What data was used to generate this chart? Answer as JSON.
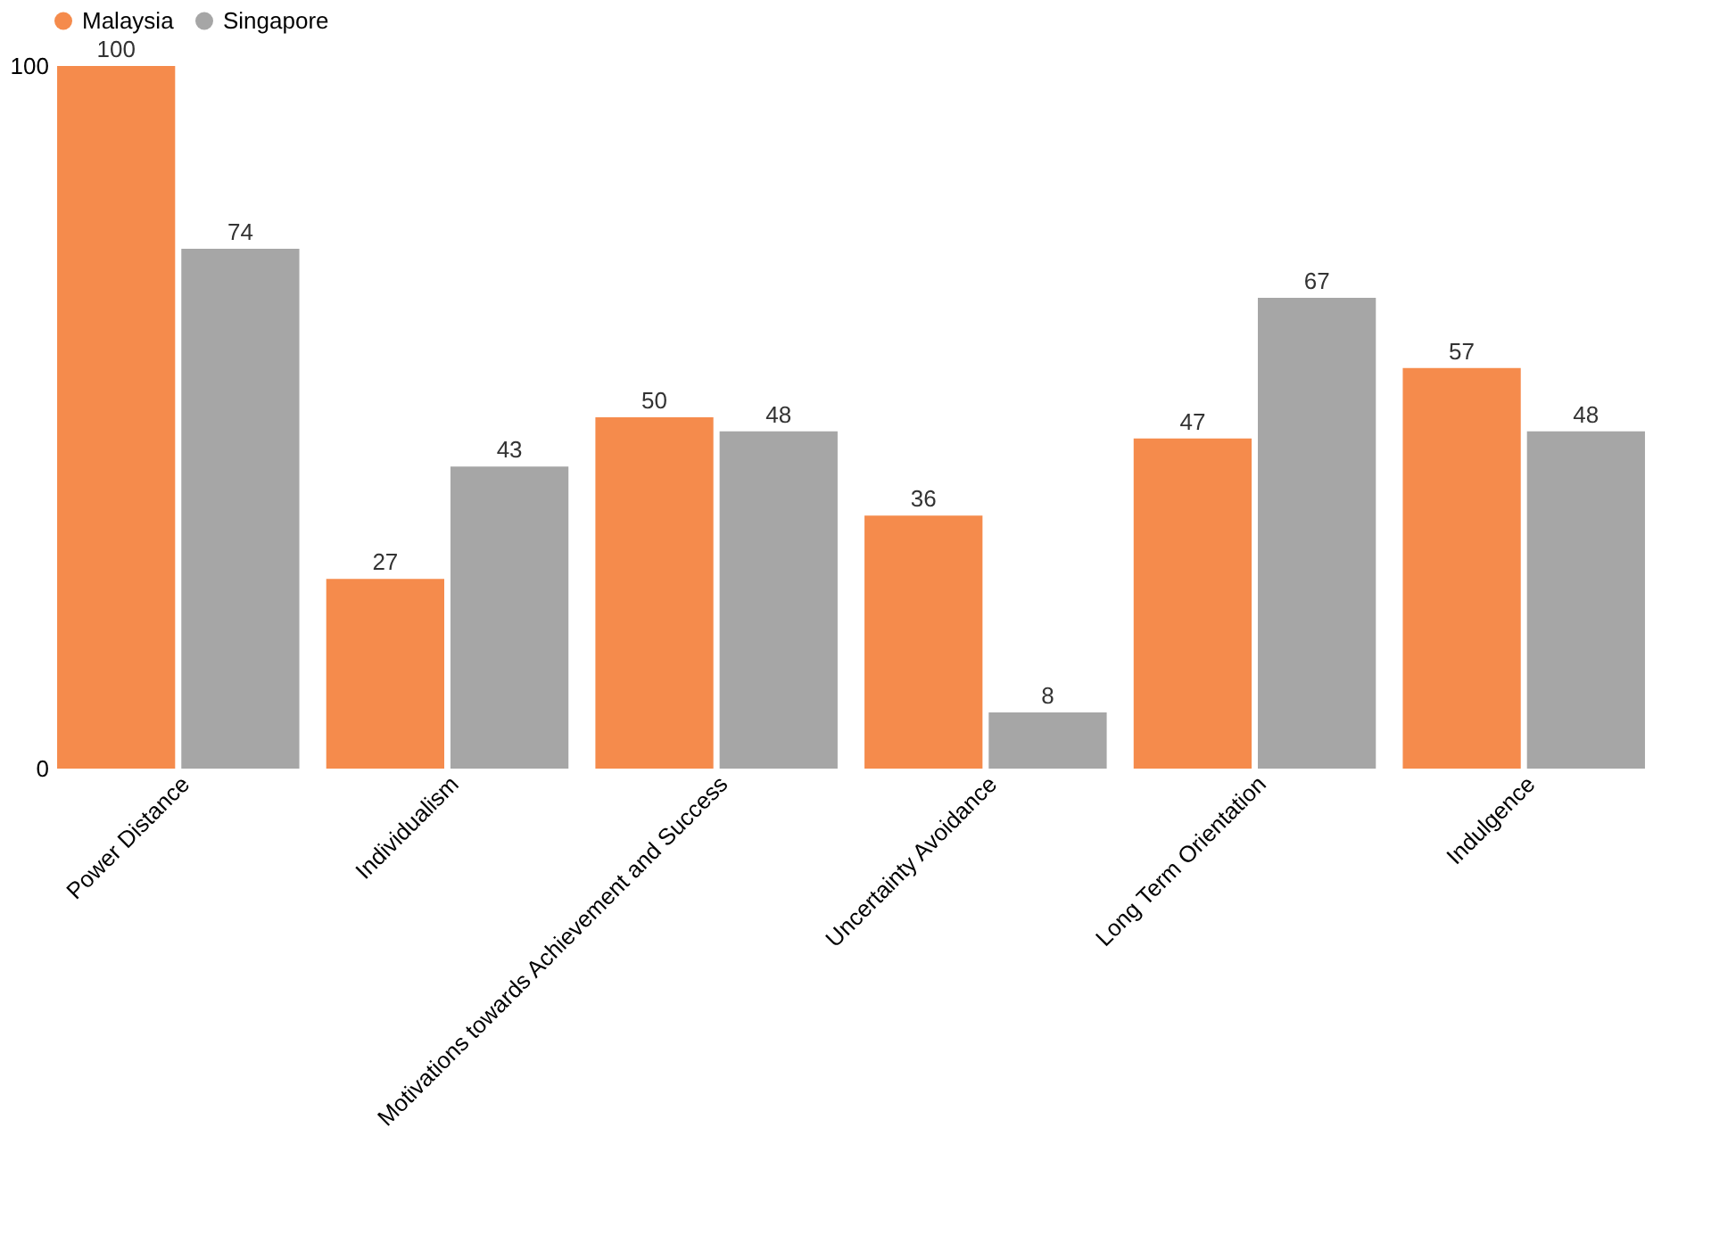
{
  "chart_data": {
    "type": "bar",
    "categories": [
      "Power Distance",
      "Individualism",
      "Motivations towards Achievement and Success",
      "Uncertainty Avoidance",
      "Long Term Orientation",
      "Indulgence"
    ],
    "series": [
      {
        "name": "Malaysia",
        "color": "#f58b4c",
        "values": [
          100,
          27,
          50,
          36,
          47,
          57
        ]
      },
      {
        "name": "Singapore",
        "color": "#a6a6a6",
        "values": [
          74,
          43,
          48,
          8,
          67,
          48
        ]
      }
    ],
    "ylim": [
      0,
      100
    ],
    "yticks": [
      0,
      100
    ],
    "data_labels": true,
    "legend": "top",
    "grid": false
  }
}
